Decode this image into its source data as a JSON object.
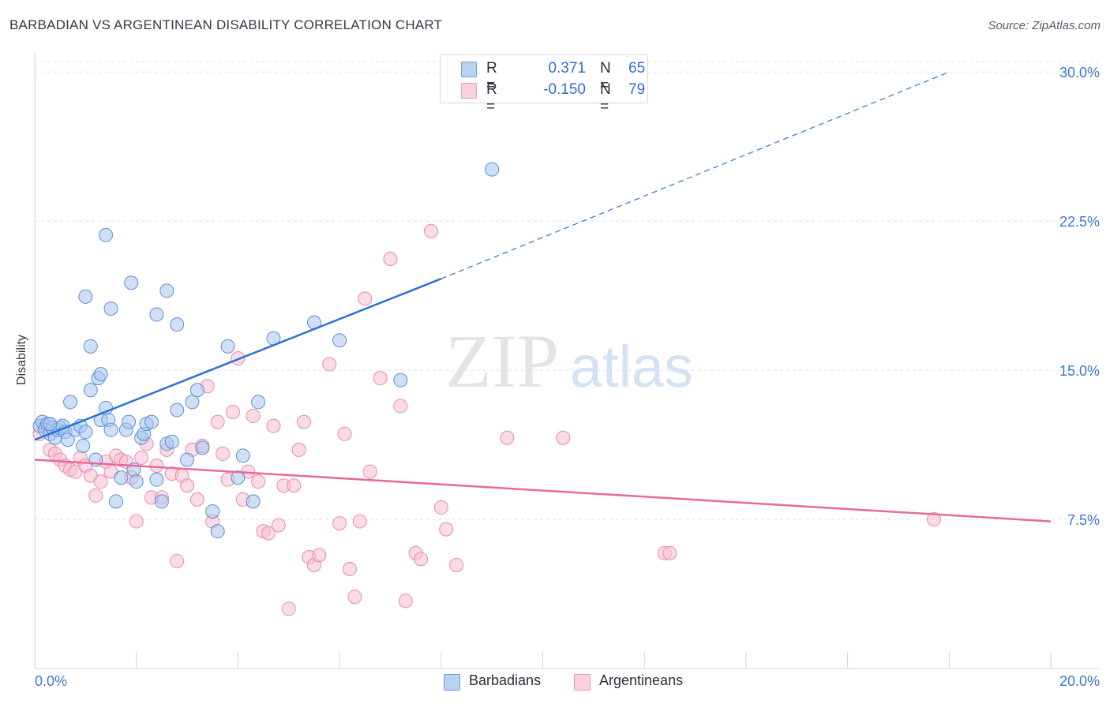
{
  "title": "BARBADIAN VS ARGENTINEAN DISABILITY CORRELATION CHART",
  "source": "Source: ZipAtlas.com",
  "watermark": {
    "zip": "ZIP",
    "atlas": "atlas"
  },
  "legend": {
    "rows": [
      {
        "r_label": "R =",
        "r_value": "0.371",
        "n_label": "N =",
        "n_value": "65"
      },
      {
        "r_label": "R =",
        "r_value": "-0.150",
        "n_label": "N =",
        "n_value": "79"
      }
    ]
  },
  "bottom_legend": {
    "series1": "Barbadians",
    "series2": "Argentineans"
  },
  "colors": {
    "blue_fill": "#a8c7ef",
    "blue_stroke": "#5b8fd6",
    "blue_line": "#2c72d3",
    "pink_fill": "#f7bfd1",
    "pink_stroke": "#e889a8",
    "pink_line": "#e8699a",
    "axis_text": "#3d78cf",
    "grid": "#dfe2e6"
  },
  "chart_data": {
    "type": "scatter",
    "title": "BARBADIAN VS ARGENTINEAN DISABILITY CORRELATION CHART",
    "xlabel": "",
    "ylabel": "Disability",
    "xlim": [
      0,
      20
    ],
    "ylim": [
      0,
      31
    ],
    "x_ticks": [
      0,
      2,
      4,
      6,
      8,
      10,
      12,
      14,
      16,
      18,
      20
    ],
    "x_tick_labels": {
      "min": "0.0%",
      "max": "20.0%"
    },
    "y_ticks": [
      7.5,
      15.0,
      22.5,
      30.0
    ],
    "y_tick_labels": [
      "7.5%",
      "15.0%",
      "22.5%",
      "30.0%"
    ],
    "grid": true,
    "legend_position": "top-center",
    "series": [
      {
        "name": "Barbadians",
        "R": 0.371,
        "N": 65,
        "trend": {
          "x0": 0,
          "y0": 11.5,
          "x1": 8.0,
          "y1": 19.6,
          "dashed_to_x": 18.0,
          "dashed_to_y": 30.0
        },
        "points": [
          [
            0.1,
            12.2
          ],
          [
            0.15,
            12.4
          ],
          [
            0.2,
            12.0
          ],
          [
            0.25,
            12.3
          ],
          [
            0.3,
            11.8
          ],
          [
            0.35,
            12.1
          ],
          [
            0.4,
            11.6
          ],
          [
            0.45,
            12.0
          ],
          [
            0.5,
            12.1
          ],
          [
            0.55,
            12.2
          ],
          [
            0.6,
            11.9
          ],
          [
            0.65,
            11.5
          ],
          [
            0.7,
            13.4
          ],
          [
            0.8,
            12.0
          ],
          [
            0.9,
            12.2
          ],
          [
            0.95,
            11.2
          ],
          [
            1.0,
            11.9
          ],
          [
            1.1,
            14.0
          ],
          [
            1.2,
            10.5
          ],
          [
            1.25,
            14.6
          ],
          [
            1.3,
            12.5
          ],
          [
            1.4,
            13.1
          ],
          [
            1.45,
            12.5
          ],
          [
            1.5,
            12.0
          ],
          [
            1.6,
            8.4
          ],
          [
            1.7,
            9.6
          ],
          [
            1.8,
            12.0
          ],
          [
            1.85,
            12.4
          ],
          [
            1.95,
            10.0
          ],
          [
            2.0,
            9.4
          ],
          [
            2.1,
            11.6
          ],
          [
            2.15,
            11.8
          ],
          [
            2.2,
            12.3
          ],
          [
            2.3,
            12.4
          ],
          [
            2.4,
            9.5
          ],
          [
            2.5,
            8.4
          ],
          [
            2.6,
            11.3
          ],
          [
            2.7,
            11.4
          ],
          [
            2.8,
            13.0
          ],
          [
            3.0,
            10.5
          ],
          [
            3.1,
            13.4
          ],
          [
            3.2,
            14.0
          ],
          [
            3.3,
            11.1
          ],
          [
            3.5,
            7.9
          ],
          [
            3.6,
            6.9
          ],
          [
            3.8,
            16.2
          ],
          [
            4.0,
            9.6
          ],
          [
            4.1,
            10.7
          ],
          [
            4.3,
            8.4
          ],
          [
            4.4,
            13.4
          ],
          [
            4.7,
            16.6
          ],
          [
            5.5,
            17.4
          ],
          [
            6.0,
            16.5
          ],
          [
            7.2,
            14.5
          ],
          [
            9.0,
            25.1
          ],
          [
            0.3,
            12.3
          ],
          [
            1.0,
            18.7
          ],
          [
            1.1,
            16.2
          ],
          [
            1.3,
            14.8
          ],
          [
            1.4,
            21.8
          ],
          [
            1.5,
            18.1
          ],
          [
            1.9,
            19.4
          ],
          [
            2.4,
            17.8
          ],
          [
            2.6,
            19.0
          ],
          [
            2.8,
            17.3
          ]
        ]
      },
      {
        "name": "Argentineans",
        "R": -0.15,
        "N": 79,
        "trend": {
          "x0": 0,
          "y0": 10.5,
          "x1": 20.0,
          "y1": 7.4
        },
        "points": [
          [
            0.1,
            11.8
          ],
          [
            0.2,
            12.2
          ],
          [
            0.3,
            11.0
          ],
          [
            0.4,
            10.8
          ],
          [
            0.5,
            10.5
          ],
          [
            0.6,
            10.2
          ],
          [
            0.7,
            10.0
          ],
          [
            0.8,
            9.9
          ],
          [
            0.9,
            10.6
          ],
          [
            1.0,
            10.2
          ],
          [
            1.1,
            9.7
          ],
          [
            1.2,
            8.7
          ],
          [
            1.3,
            9.4
          ],
          [
            1.4,
            10.4
          ],
          [
            1.5,
            9.9
          ],
          [
            1.6,
            10.7
          ],
          [
            1.7,
            10.5
          ],
          [
            1.8,
            10.4
          ],
          [
            1.9,
            9.6
          ],
          [
            2.0,
            7.4
          ],
          [
            2.1,
            10.6
          ],
          [
            2.2,
            11.3
          ],
          [
            2.3,
            8.6
          ],
          [
            2.4,
            10.2
          ],
          [
            2.5,
            8.6
          ],
          [
            2.6,
            11.0
          ],
          [
            2.7,
            9.8
          ],
          [
            2.8,
            5.4
          ],
          [
            2.9,
            9.7
          ],
          [
            3.0,
            9.2
          ],
          [
            3.1,
            11.0
          ],
          [
            3.2,
            8.5
          ],
          [
            3.3,
            11.2
          ],
          [
            3.4,
            14.2
          ],
          [
            3.5,
            7.4
          ],
          [
            3.6,
            12.4
          ],
          [
            3.7,
            10.8
          ],
          [
            3.8,
            9.5
          ],
          [
            3.9,
            12.9
          ],
          [
            4.0,
            15.6
          ],
          [
            4.1,
            8.5
          ],
          [
            4.2,
            9.9
          ],
          [
            4.3,
            12.7
          ],
          [
            4.4,
            9.4
          ],
          [
            4.5,
            6.9
          ],
          [
            4.6,
            6.8
          ],
          [
            4.7,
            12.2
          ],
          [
            4.8,
            7.2
          ],
          [
            4.9,
            9.2
          ],
          [
            5.0,
            3.0
          ],
          [
            5.1,
            9.2
          ],
          [
            5.2,
            11.0
          ],
          [
            5.3,
            12.4
          ],
          [
            5.4,
            5.6
          ],
          [
            5.5,
            5.2
          ],
          [
            5.6,
            5.7
          ],
          [
            5.8,
            15.3
          ],
          [
            6.0,
            7.3
          ],
          [
            6.1,
            11.8
          ],
          [
            6.2,
            5.0
          ],
          [
            6.3,
            3.6
          ],
          [
            6.4,
            7.4
          ],
          [
            6.5,
            18.6
          ],
          [
            6.6,
            9.9
          ],
          [
            6.8,
            14.6
          ],
          [
            7.0,
            20.6
          ],
          [
            7.2,
            13.2
          ],
          [
            7.3,
            3.4
          ],
          [
            7.5,
            5.8
          ],
          [
            7.6,
            5.5
          ],
          [
            7.8,
            22.0
          ],
          [
            8.0,
            8.1
          ],
          [
            8.1,
            7.0
          ],
          [
            8.3,
            5.2
          ],
          [
            9.3,
            11.6
          ],
          [
            10.4,
            11.6
          ],
          [
            12.4,
            5.8
          ],
          [
            12.5,
            5.8
          ],
          [
            17.7,
            7.5
          ]
        ]
      }
    ]
  }
}
